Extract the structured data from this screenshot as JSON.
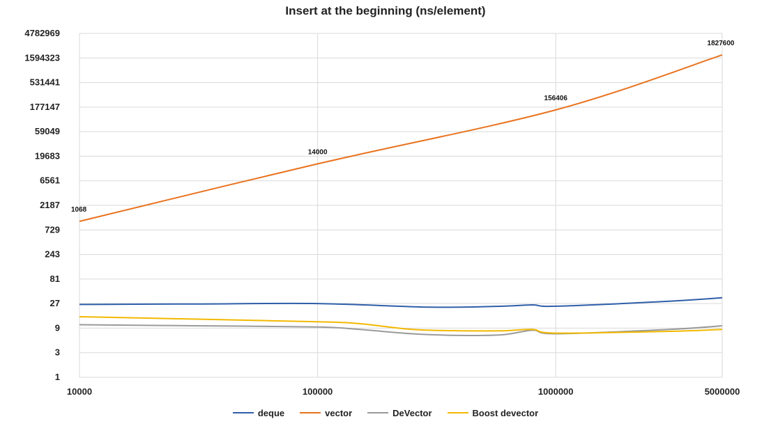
{
  "chart_data": {
    "type": "line",
    "title": "Insert at the beginning (ns/element)",
    "xlabel": "",
    "ylabel": "",
    "x_scale": "log",
    "y_scale": "log",
    "xlim": [
      10000,
      5000000
    ],
    "ylim": [
      1,
      4782969
    ],
    "x_ticks": [
      "10000",
      "100000",
      "1000000",
      "5000000"
    ],
    "y_ticks": [
      "4782969",
      "1594323",
      "531441",
      "177147",
      "59049",
      "19683",
      "6561",
      "2187",
      "729",
      "243",
      "81",
      "27",
      "9",
      "3",
      "1"
    ],
    "grid": "on",
    "legend_position": "bottom",
    "series": [
      {
        "name": "deque",
        "color": "#2e5ea8",
        "points": [
          [
            10000,
            26
          ],
          [
            30000,
            26.5
          ],
          [
            100000,
            27
          ],
          [
            300000,
            23
          ],
          [
            600000,
            24
          ],
          [
            800000,
            25.5
          ],
          [
            1000000,
            24
          ],
          [
            3000000,
            30
          ],
          [
            5000000,
            35
          ]
        ]
      },
      {
        "name": "vector",
        "color": "#e8731f",
        "points": [
          [
            10000,
            1068
          ],
          [
            100000,
            14000
          ],
          [
            1000000,
            156406
          ],
          [
            5000000,
            1827600
          ]
        ],
        "labels": [
          "1068",
          "14000",
          "156406",
          "1827600"
        ]
      },
      {
        "name": "DeVector",
        "color": "#9a9a9a",
        "points": [
          [
            10000,
            10.5
          ],
          [
            30000,
            10
          ],
          [
            100000,
            9.5
          ],
          [
            150000,
            8.5
          ],
          [
            250000,
            7
          ],
          [
            400000,
            6.5
          ],
          [
            600000,
            6.7
          ],
          [
            800000,
            8.2
          ],
          [
            1000000,
            7
          ],
          [
            3000000,
            8.5
          ],
          [
            5000000,
            10
          ]
        ]
      },
      {
        "name": "Boost devector",
        "color": "#f2b800",
        "points": [
          [
            10000,
            15
          ],
          [
            30000,
            13.5
          ],
          [
            100000,
            12
          ],
          [
            150000,
            11
          ],
          [
            250000,
            8.5
          ],
          [
            400000,
            8
          ],
          [
            600000,
            8
          ],
          [
            800000,
            8.5
          ],
          [
            1000000,
            7.2
          ],
          [
            3000000,
            7.8
          ],
          [
            5000000,
            8.5
          ]
        ]
      }
    ]
  }
}
